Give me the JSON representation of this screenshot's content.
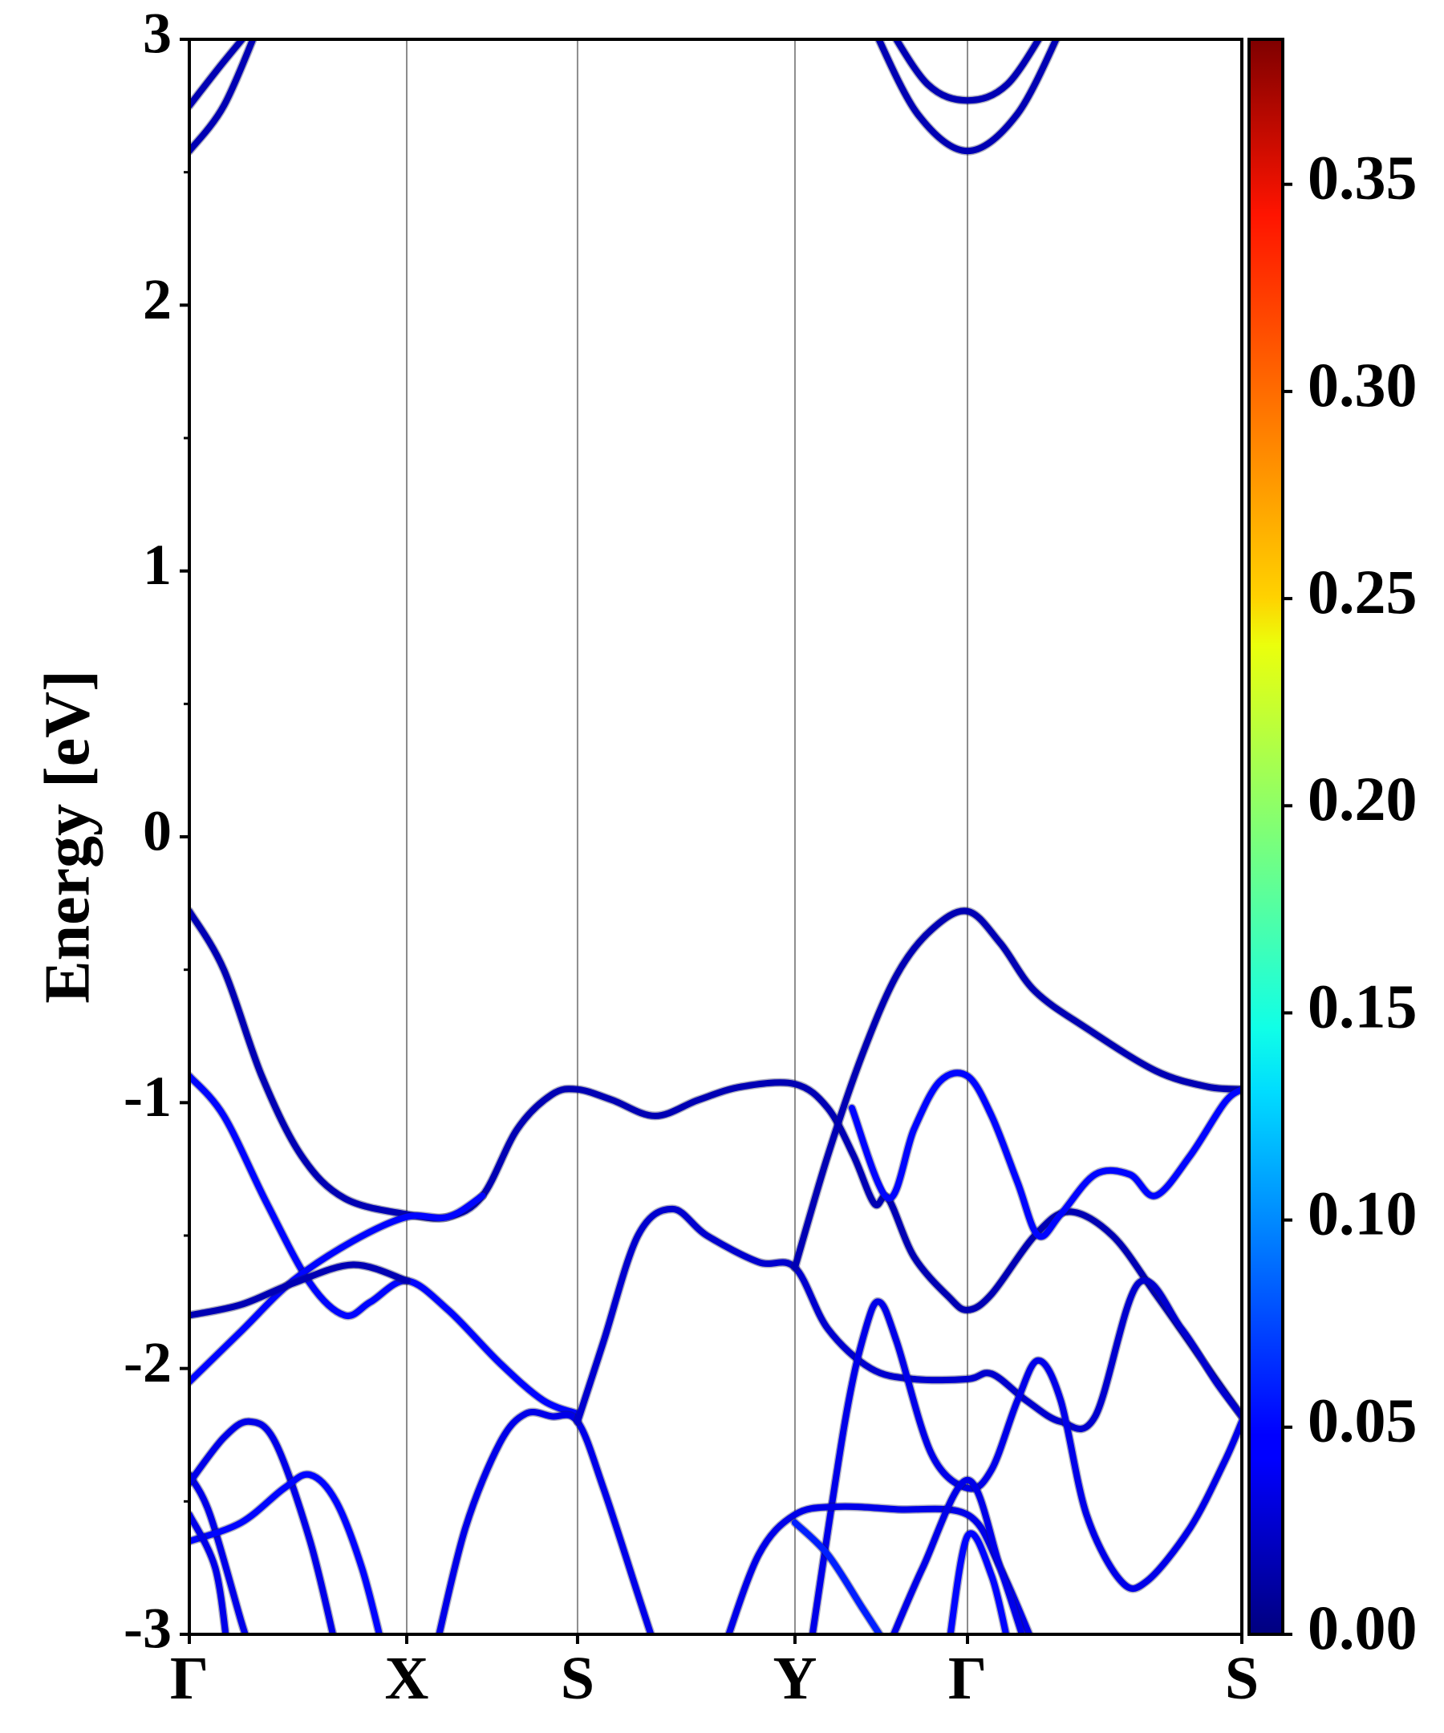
{
  "chart_data": {
    "type": "line",
    "title": "",
    "xlabel": "",
    "ylabel": "Energy [eV]",
    "ylim": [
      -3,
      3
    ],
    "yticks": [
      3,
      2,
      1,
      0,
      -1,
      -2,
      -3
    ],
    "yticklabels": [
      "3",
      "2",
      "1",
      "0",
      "-1",
      "-2",
      "-3"
    ],
    "xlim": [
      0,
      6.1
    ],
    "kpoints": [
      {
        "label": "Γ",
        "x": 0.0
      },
      {
        "label": "X",
        "x": 1.26
      },
      {
        "label": "S",
        "x": 2.25
      },
      {
        "label": "Y",
        "x": 3.51
      },
      {
        "label": "Γ",
        "x": 4.51
      },
      {
        "label": "S",
        "x": 6.1
      }
    ],
    "grid": "vertical lines at high-symmetry points",
    "colorbar": {
      "colormap": "jet",
      "range": [
        0,
        0.385
      ],
      "ticks": [
        0.0,
        0.05,
        0.1,
        0.15,
        0.2,
        0.25,
        0.3,
        0.35
      ],
      "ticklabels": [
        "0.00",
        "0.05",
        "0.10",
        "0.15",
        "0.20",
        "0.25",
        "0.30",
        "0.35"
      ]
    },
    "bands": [
      {
        "weight": 0.02,
        "points": [
          [
            0,
            2.75
          ],
          [
            0.18,
            2.9
          ],
          [
            0.37,
            3.05
          ]
        ]
      },
      {
        "weight": 0.02,
        "points": [
          [
            0,
            2.58
          ],
          [
            0.2,
            2.75
          ],
          [
            0.4,
            3.05
          ]
        ]
      },
      {
        "weight": 0.02,
        "points": [
          [
            4.05,
            3.05
          ],
          [
            4.28,
            2.83
          ],
          [
            4.51,
            2.77
          ],
          [
            4.74,
            2.83
          ],
          [
            4.97,
            3.05
          ]
        ]
      },
      {
        "weight": 0.02,
        "points": [
          [
            3.96,
            3.05
          ],
          [
            4.22,
            2.72
          ],
          [
            4.51,
            2.58
          ],
          [
            4.8,
            2.72
          ],
          [
            5.06,
            3.05
          ]
        ]
      },
      {
        "weight": 0.02,
        "points": [
          [
            0,
            -0.28
          ],
          [
            0.2,
            -0.5
          ],
          [
            0.42,
            -0.9
          ],
          [
            0.65,
            -1.2
          ],
          [
            0.9,
            -1.36
          ],
          [
            1.26,
            -1.42
          ],
          [
            1.5,
            -1.43
          ],
          [
            1.7,
            -1.35
          ],
          [
            1.9,
            -1.1
          ],
          [
            2.1,
            -0.97
          ],
          [
            2.25,
            -0.95
          ],
          [
            2.45,
            -0.99
          ],
          [
            2.7,
            -1.05
          ],
          [
            2.95,
            -0.99
          ],
          [
            3.2,
            -0.94
          ],
          [
            3.51,
            -0.93
          ],
          [
            3.7,
            -1.02
          ],
          [
            3.85,
            -1.2
          ],
          [
            3.97,
            -1.38
          ],
          [
            4.05,
            -1.36
          ],
          [
            4.2,
            -1.58
          ],
          [
            4.4,
            -1.73
          ],
          [
            4.51,
            -1.78
          ],
          [
            4.65,
            -1.72
          ],
          [
            4.9,
            -1.5
          ],
          [
            5.1,
            -1.41
          ],
          [
            5.35,
            -1.5
          ],
          [
            5.6,
            -1.72
          ],
          [
            5.85,
            -1.95
          ],
          [
            6.1,
            -2.18
          ]
        ]
      },
      {
        "weight": 0.05,
        "points": [
          [
            0,
            -0.9
          ],
          [
            0.2,
            -1.05
          ],
          [
            0.45,
            -1.38
          ],
          [
            0.7,
            -1.68
          ],
          [
            0.9,
            -1.8
          ],
          [
            1.05,
            -1.75
          ],
          [
            1.26,
            -1.67
          ],
          [
            1.5,
            -1.78
          ],
          [
            1.8,
            -1.98
          ],
          [
            2.05,
            -2.12
          ],
          [
            2.25,
            -2.17
          ]
        ]
      },
      {
        "weight": 0.05,
        "points": [
          [
            0,
            -2.05
          ],
          [
            0.3,
            -1.86
          ],
          [
            0.6,
            -1.67
          ],
          [
            0.95,
            -1.52
          ],
          [
            1.26,
            -1.43
          ],
          [
            1.5,
            -1.43
          ],
          [
            1.7,
            -1.35
          ]
        ]
      },
      {
        "weight": 0.02,
        "points": [
          [
            0,
            -1.8
          ],
          [
            0.3,
            -1.76
          ],
          [
            0.6,
            -1.68
          ],
          [
            0.95,
            -1.61
          ],
          [
            1.26,
            -1.67
          ]
        ]
      },
      {
        "weight": 0.04,
        "points": [
          [
            1.43,
            -3.05
          ],
          [
            1.6,
            -2.6
          ],
          [
            1.8,
            -2.28
          ],
          [
            1.95,
            -2.17
          ],
          [
            2.1,
            -2.18
          ],
          [
            2.25,
            -2.2
          ],
          [
            2.4,
            -2.45
          ],
          [
            2.6,
            -2.85
          ],
          [
            2.7,
            -3.05
          ]
        ]
      },
      {
        "weight": 0.03,
        "points": [
          [
            2.25,
            -2.2
          ],
          [
            2.4,
            -1.9
          ],
          [
            2.6,
            -1.5
          ],
          [
            2.8,
            -1.4
          ],
          [
            3.0,
            -1.5
          ],
          [
            3.3,
            -1.6
          ],
          [
            3.51,
            -1.62
          ],
          [
            3.7,
            -1.85
          ],
          [
            3.95,
            -2.0
          ],
          [
            4.2,
            -2.04
          ],
          [
            4.51,
            -2.04
          ],
          [
            4.65,
            -2.02
          ],
          [
            4.85,
            -2.12
          ],
          [
            5.05,
            -2.2
          ],
          [
            5.25,
            -2.18
          ],
          [
            5.5,
            -1.68
          ],
          [
            5.75,
            -1.85
          ],
          [
            5.95,
            -2.05
          ],
          [
            6.1,
            -2.18
          ]
        ]
      },
      {
        "weight": 0.02,
        "points": [
          [
            3.51,
            -1.62
          ],
          [
            3.7,
            -1.2
          ],
          [
            3.9,
            -0.82
          ],
          [
            4.1,
            -0.52
          ],
          [
            4.3,
            -0.35
          ],
          [
            4.51,
            -0.28
          ],
          [
            4.7,
            -0.4
          ],
          [
            4.9,
            -0.58
          ],
          [
            5.2,
            -0.72
          ],
          [
            5.6,
            -0.88
          ],
          [
            5.9,
            -0.94
          ],
          [
            6.1,
            -0.95
          ]
        ]
      },
      {
        "weight": 0.05,
        "points": [
          [
            3.84,
            -1.02
          ],
          [
            4.05,
            -1.36
          ],
          [
            4.2,
            -1.1
          ],
          [
            4.35,
            -0.92
          ],
          [
            4.51,
            -0.9
          ],
          [
            4.65,
            -1.05
          ],
          [
            4.8,
            -1.3
          ],
          [
            4.92,
            -1.5
          ],
          [
            5.05,
            -1.42
          ],
          [
            5.25,
            -1.27
          ],
          [
            5.45,
            -1.27
          ],
          [
            5.6,
            -1.35
          ],
          [
            5.8,
            -1.2
          ],
          [
            6.0,
            -1.0
          ],
          [
            6.1,
            -0.95
          ]
        ]
      },
      {
        "weight": 0.04,
        "points": [
          [
            3.6,
            -3.05
          ],
          [
            3.8,
            -2.2
          ],
          [
            3.92,
            -1.85
          ],
          [
            4.0,
            -1.75
          ],
          [
            4.1,
            -1.9
          ],
          [
            4.3,
            -2.32
          ],
          [
            4.51,
            -2.45
          ],
          [
            4.65,
            -2.38
          ],
          [
            4.8,
            -2.12
          ],
          [
            4.92,
            -1.97
          ],
          [
            5.05,
            -2.12
          ],
          [
            5.2,
            -2.55
          ],
          [
            5.4,
            -2.8
          ],
          [
            5.55,
            -2.8
          ],
          [
            5.8,
            -2.6
          ],
          [
            6.0,
            -2.35
          ],
          [
            6.1,
            -2.2
          ]
        ]
      },
      {
        "weight": 0.04,
        "points": [
          [
            3.1,
            -3.05
          ],
          [
            3.3,
            -2.7
          ],
          [
            3.51,
            -2.55
          ],
          [
            3.75,
            -2.52
          ],
          [
            4.1,
            -2.53
          ],
          [
            4.51,
            -2.55
          ],
          [
            4.7,
            -2.75
          ],
          [
            4.9,
            -3.05
          ]
        ]
      },
      {
        "weight": 0.06,
        "points": [
          [
            3.51,
            -2.58
          ],
          [
            3.7,
            -2.7
          ],
          [
            3.9,
            -2.9
          ],
          [
            4.05,
            -3.05
          ]
        ]
      },
      {
        "weight": 0.04,
        "points": [
          [
            4.05,
            -3.05
          ],
          [
            4.25,
            -2.75
          ],
          [
            4.51,
            -2.42
          ],
          [
            4.7,
            -2.75
          ],
          [
            4.85,
            -3.05
          ]
        ]
      },
      {
        "weight": 0.05,
        "points": [
          [
            4.4,
            -3.05
          ],
          [
            4.51,
            -2.63
          ],
          [
            4.65,
            -2.78
          ],
          [
            4.75,
            -3.05
          ]
        ]
      },
      {
        "weight": 0.04,
        "points": [
          [
            0,
            -2.4
          ],
          [
            0.12,
            -2.55
          ],
          [
            0.3,
            -2.95
          ],
          [
            0.35,
            -3.05
          ]
        ]
      },
      {
        "weight": 0.04,
        "points": [
          [
            0,
            -2.43
          ],
          [
            0.2,
            -2.26
          ],
          [
            0.35,
            -2.2
          ],
          [
            0.5,
            -2.28
          ],
          [
            0.7,
            -2.65
          ],
          [
            0.85,
            -3.05
          ]
        ]
      },
      {
        "weight": 0.05,
        "points": [
          [
            0,
            -2.65
          ],
          [
            0.3,
            -2.58
          ],
          [
            0.55,
            -2.45
          ],
          [
            0.7,
            -2.4
          ],
          [
            0.85,
            -2.5
          ],
          [
            1.0,
            -2.75
          ],
          [
            1.12,
            -3.05
          ]
        ]
      },
      {
        "weight": 0.04,
        "points": [
          [
            0,
            -2.55
          ],
          [
            0.15,
            -2.75
          ],
          [
            0.22,
            -3.05
          ]
        ]
      }
    ]
  }
}
